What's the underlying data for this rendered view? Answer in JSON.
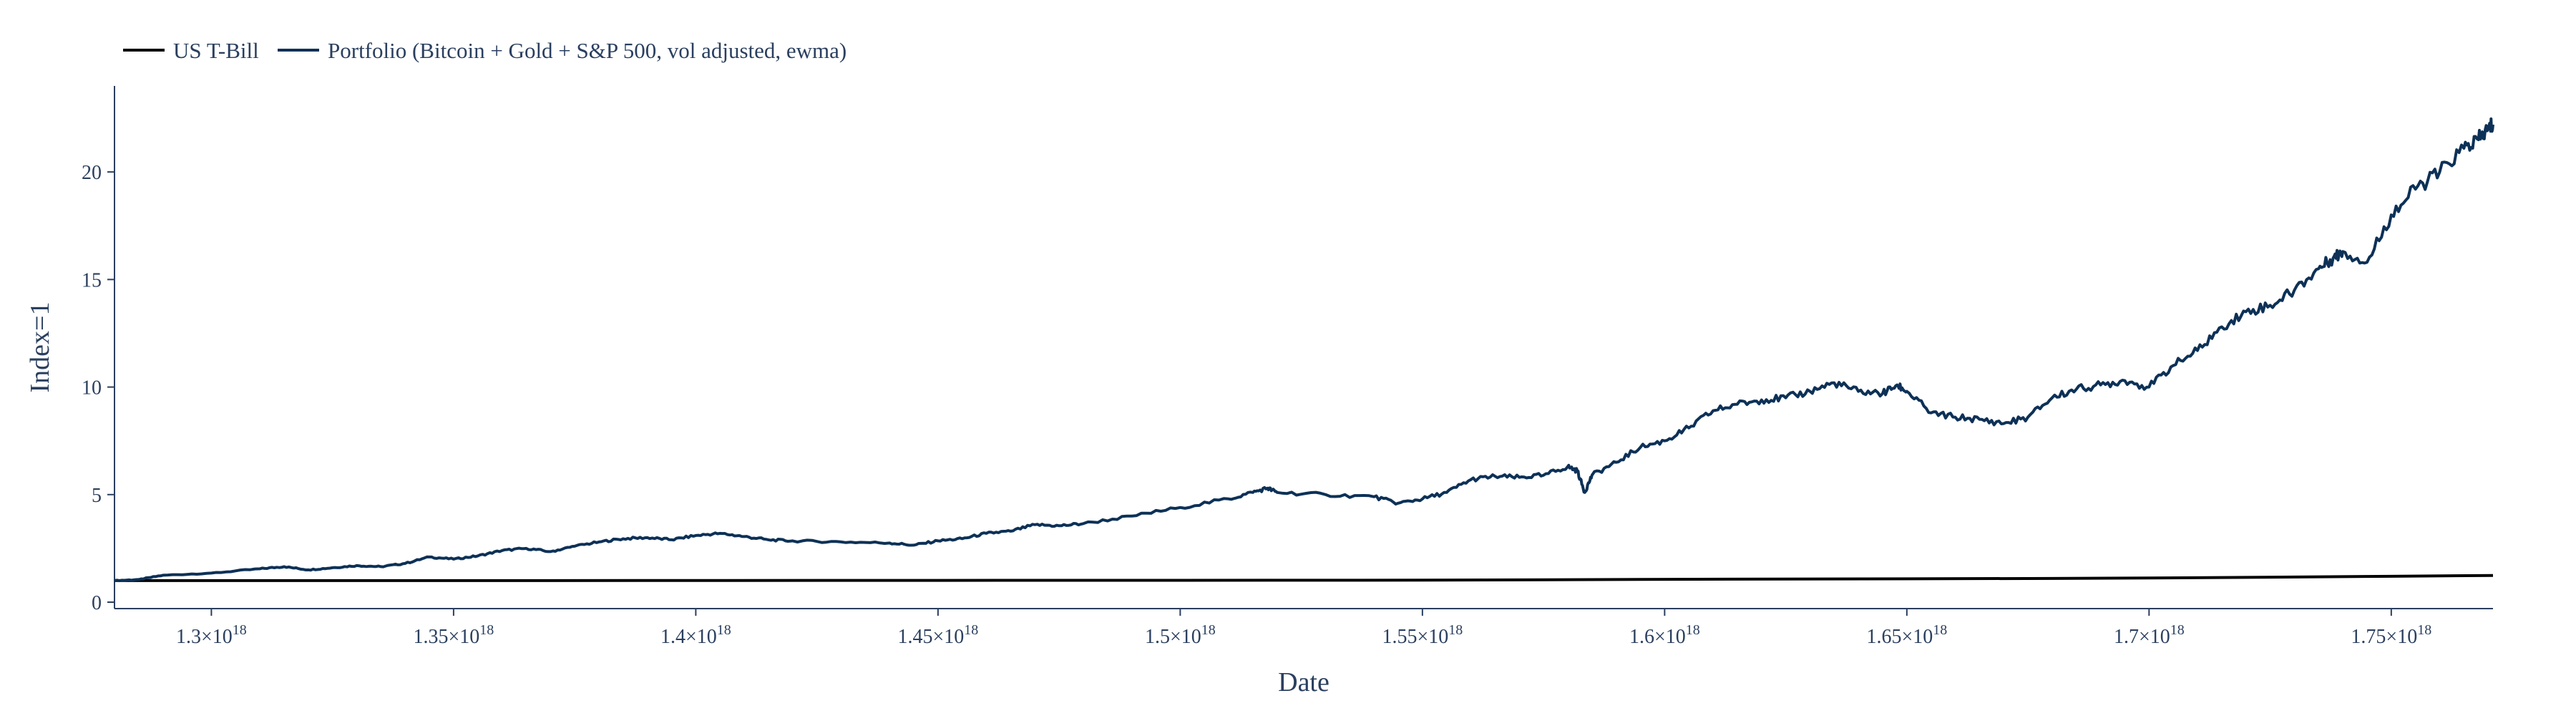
{
  "chart_data": {
    "type": "line",
    "title": "",
    "xlabel": "Date",
    "ylabel": "Index=1",
    "xlim": [
      1.28e+18,
      1.771e+18
    ],
    "ylim": [
      -0.3,
      24
    ],
    "grid": false,
    "legend_position": "top-left",
    "x_ticks": [
      {
        "value": 1.3e+18,
        "mantissa": "1.3",
        "exp": "18"
      },
      {
        "value": 1.35e+18,
        "mantissa": "1.35",
        "exp": "18"
      },
      {
        "value": 1.4e+18,
        "mantissa": "1.4",
        "exp": "18"
      },
      {
        "value": 1.45e+18,
        "mantissa": "1.45",
        "exp": "18"
      },
      {
        "value": 1.5e+18,
        "mantissa": "1.5",
        "exp": "18"
      },
      {
        "value": 1.55e+18,
        "mantissa": "1.55",
        "exp": "18"
      },
      {
        "value": 1.6e+18,
        "mantissa": "1.6",
        "exp": "18"
      },
      {
        "value": 1.65e+18,
        "mantissa": "1.65",
        "exp": "18"
      },
      {
        "value": 1.7e+18,
        "mantissa": "1.7",
        "exp": "18"
      },
      {
        "value": 1.75e+18,
        "mantissa": "1.75",
        "exp": "18"
      }
    ],
    "y_ticks": [
      {
        "value": 0,
        "label": "0"
      },
      {
        "value": 5,
        "label": "5"
      },
      {
        "value": 10,
        "label": "10"
      },
      {
        "value": 15,
        "label": "15"
      },
      {
        "value": 20,
        "label": "20"
      }
    ],
    "series": [
      {
        "name": "US T-Bill",
        "color": "#000000",
        "x": [
          1.28e+18,
          1.35e+18,
          1.45e+18,
          1.55e+18,
          1.6e+18,
          1.68e+18,
          1.7e+18,
          1.75e+18,
          1.771e+18
        ],
        "y": [
          1.0,
          1.0,
          1.01,
          1.02,
          1.06,
          1.1,
          1.12,
          1.2,
          1.24
        ]
      },
      {
        "name": "Portfolio (Bitcoin + Gold + S&P 500, vol adjusted, ewma)",
        "color": "#0d3157",
        "x": [
          1.28e+18,
          1.285e+18,
          1.29e+18,
          1.3e+18,
          1.31e+18,
          1.315e+18,
          1.32e+18,
          1.325e+18,
          1.33e+18,
          1.335e+18,
          1.34e+18,
          1.345e+18,
          1.35e+18,
          1.355e+18,
          1.36e+18,
          1.365e+18,
          1.37e+18,
          1.375e+18,
          1.38e+18,
          1.385e+18,
          1.39e+18,
          1.395e+18,
          1.4e+18,
          1.405e+18,
          1.41e+18,
          1.415e+18,
          1.42e+18,
          1.43e+18,
          1.44e+18,
          1.445e+18,
          1.45e+18,
          1.455e+18,
          1.46e+18,
          1.465e+18,
          1.47e+18,
          1.475e+18,
          1.48e+18,
          1.49e+18,
          1.5e+18,
          1.51e+18,
          1.515e+18,
          1.518e+18,
          1.52e+18,
          1.53e+18,
          1.54e+18,
          1.545e+18,
          1.55e+18,
          1.555e+18,
          1.56e+18,
          1.565e+18,
          1.57e+18,
          1.575e+18,
          1.58e+18,
          1.582e+18,
          1.5835e+18,
          1.585e+18,
          1.59e+18,
          1.595e+18,
          1.6e+18,
          1.605e+18,
          1.61e+18,
          1.615e+18,
          1.62e+18,
          1.625e+18,
          1.63e+18,
          1.635e+18,
          1.64e+18,
          1.645e+18,
          1.648e+18,
          1.65e+18,
          1.655e+18,
          1.66e+18,
          1.665e+18,
          1.67e+18,
          1.675e+18,
          1.68e+18,
          1.685e+18,
          1.69e+18,
          1.695e+18,
          1.7e+18,
          1.705e+18,
          1.71e+18,
          1.715e+18,
          1.72e+18,
          1.725e+18,
          1.73e+18,
          1.735e+18,
          1.738e+18,
          1.74e+18,
          1.745e+18,
          1.75e+18,
          1.755e+18,
          1.76e+18,
          1.765e+18,
          1.768e+18,
          1.77e+18,
          1.771e+18
        ],
        "y": [
          1.0,
          1.05,
          1.25,
          1.35,
          1.55,
          1.65,
          1.5,
          1.6,
          1.7,
          1.65,
          1.8,
          2.1,
          2.0,
          2.15,
          2.4,
          2.5,
          2.35,
          2.6,
          2.8,
          2.95,
          3.0,
          2.9,
          3.1,
          3.2,
          3.05,
          2.9,
          2.85,
          2.8,
          2.75,
          2.65,
          2.85,
          2.95,
          3.2,
          3.3,
          3.6,
          3.55,
          3.65,
          4.0,
          4.4,
          4.8,
          5.1,
          5.3,
          5.1,
          5.0,
          4.9,
          4.6,
          4.8,
          5.1,
          5.7,
          5.85,
          5.8,
          5.9,
          6.3,
          6.1,
          5.1,
          5.9,
          6.5,
          7.2,
          7.5,
          8.1,
          8.9,
          9.2,
          9.4,
          9.5,
          9.8,
          10.2,
          9.8,
          9.7,
          10.1,
          9.8,
          8.8,
          8.6,
          8.5,
          8.3,
          8.6,
          9.5,
          9.9,
          10.1,
          10.3,
          10.0,
          11.0,
          11.7,
          12.8,
          13.5,
          13.8,
          14.5,
          15.5,
          16.0,
          16.3,
          15.8,
          18.0,
          19.2,
          20.0,
          21.1,
          21.5,
          22.0,
          22.2
        ]
      }
    ]
  }
}
